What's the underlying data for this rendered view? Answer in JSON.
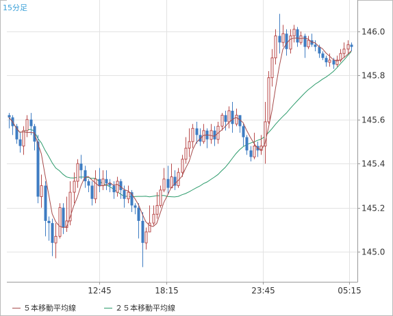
{
  "chart_data": {
    "type": "candlestick",
    "interval_label": "15分足",
    "y_range": [
      144.9,
      146.15
    ],
    "y_ticks": [
      "145.0",
      "145.2",
      "145.4",
      "145.6",
      "145.8",
      "146.0"
    ],
    "x_ticks": [
      "12:45",
      "18:15",
      "23:45",
      "05:15"
    ],
    "colors": {
      "up": "#b84a4a",
      "down": "#3e7cc2",
      "ma5": "#a64a4a",
      "ma25": "#2a9a6a",
      "grid": "#e2e2e2",
      "axis": "#999999"
    },
    "legend": [
      {
        "label": "５本移動平均線",
        "color": "#a64a4a"
      },
      {
        "label": "２５本移動平均線",
        "color": "#2a9a6a"
      }
    ],
    "candles": [
      [
        145.62,
        145.61,
        145.56,
        145.63
      ],
      [
        145.61,
        145.57,
        145.53,
        145.62
      ],
      [
        145.57,
        145.51,
        145.49,
        145.58
      ],
      [
        145.51,
        145.48,
        145.45,
        145.54
      ],
      [
        145.48,
        145.55,
        145.44,
        145.57
      ],
      [
        145.55,
        145.6,
        145.52,
        145.62
      ],
      [
        145.6,
        145.57,
        145.53,
        145.63
      ],
      [
        145.57,
        145.5,
        145.46,
        145.58
      ],
      [
        145.5,
        145.25,
        145.22,
        145.53
      ],
      [
        145.25,
        145.3,
        145.2,
        145.35
      ],
      [
        145.3,
        145.14,
        145.07,
        145.32
      ],
      [
        145.14,
        145.13,
        145.05,
        145.16
      ],
      [
        145.13,
        145.04,
        144.98,
        145.15
      ],
      [
        145.04,
        145.07,
        144.97,
        145.13
      ],
      [
        145.07,
        145.2,
        145.06,
        145.22
      ],
      [
        145.2,
        145.11,
        145.08,
        145.22
      ],
      [
        145.11,
        145.14,
        145.09,
        145.25
      ],
      [
        145.14,
        145.27,
        145.12,
        145.32
      ],
      [
        145.27,
        145.32,
        145.22,
        145.36
      ],
      [
        145.32,
        145.4,
        145.29,
        145.42
      ],
      [
        145.4,
        145.37,
        145.33,
        145.44
      ],
      [
        145.37,
        145.32,
        145.29,
        145.39
      ],
      [
        145.32,
        145.3,
        145.27,
        145.33
      ],
      [
        145.3,
        145.24,
        145.21,
        145.32
      ],
      [
        145.24,
        145.33,
        145.22,
        145.37
      ],
      [
        145.33,
        145.3,
        145.27,
        145.38
      ],
      [
        145.3,
        145.33,
        145.28,
        145.37
      ],
      [
        145.33,
        145.31,
        145.28,
        145.37
      ],
      [
        145.31,
        145.3,
        145.27,
        145.33
      ],
      [
        145.3,
        145.27,
        145.24,
        145.32
      ],
      [
        145.27,
        145.32,
        145.25,
        145.34
      ],
      [
        145.32,
        145.28,
        145.24,
        145.33
      ],
      [
        145.28,
        145.24,
        145.2,
        145.3
      ],
      [
        145.24,
        145.27,
        145.22,
        145.3
      ],
      [
        145.27,
        145.21,
        145.18,
        145.28
      ],
      [
        145.21,
        145.2,
        145.17,
        145.22
      ],
      [
        145.2,
        145.14,
        145.06,
        145.22
      ],
      [
        145.14,
        145.04,
        144.93,
        145.18
      ],
      [
        145.04,
        145.09,
        145.01,
        145.11
      ],
      [
        145.09,
        145.13,
        145.09,
        145.21
      ],
      [
        145.13,
        145.17,
        145.12,
        145.21
      ],
      [
        145.17,
        145.21,
        145.15,
        145.27
      ],
      [
        145.21,
        145.28,
        145.2,
        145.3
      ],
      [
        145.28,
        145.33,
        145.27,
        145.38
      ],
      [
        145.33,
        145.29,
        145.26,
        145.39
      ],
      [
        145.29,
        145.34,
        145.29,
        145.4
      ],
      [
        145.34,
        145.3,
        145.28,
        145.37
      ],
      [
        145.3,
        145.36,
        145.29,
        145.38
      ],
      [
        145.36,
        145.42,
        145.34,
        145.44
      ],
      [
        145.42,
        145.47,
        145.4,
        145.52
      ],
      [
        145.47,
        145.5,
        145.43,
        145.56
      ],
      [
        145.5,
        145.56,
        145.47,
        145.58
      ],
      [
        145.56,
        145.53,
        145.49,
        145.59
      ],
      [
        145.53,
        145.5,
        145.48,
        145.56
      ],
      [
        145.5,
        145.55,
        145.49,
        145.58
      ],
      [
        145.55,
        145.51,
        145.47,
        145.56
      ],
      [
        145.51,
        145.55,
        145.49,
        145.58
      ],
      [
        145.55,
        145.51,
        145.48,
        145.57
      ],
      [
        145.51,
        145.57,
        145.49,
        145.59
      ],
      [
        145.57,
        145.62,
        145.55,
        145.63
      ],
      [
        145.62,
        145.59,
        145.55,
        145.64
      ],
      [
        145.59,
        145.64,
        145.56,
        145.66
      ],
      [
        145.64,
        145.58,
        145.54,
        145.68
      ],
      [
        145.58,
        145.62,
        145.57,
        145.65
      ],
      [
        145.62,
        145.57,
        145.54,
        145.62
      ],
      [
        145.57,
        145.52,
        145.48,
        145.58
      ],
      [
        145.52,
        145.46,
        145.44,
        145.53
      ],
      [
        145.46,
        145.43,
        145.41,
        145.48
      ],
      [
        145.43,
        145.48,
        145.42,
        145.54
      ],
      [
        145.48,
        145.46,
        145.43,
        145.5
      ],
      [
        145.46,
        145.48,
        145.44,
        145.53
      ],
      [
        145.48,
        145.59,
        145.4,
        145.68
      ],
      [
        145.59,
        145.79,
        145.58,
        145.82
      ],
      [
        145.79,
        145.88,
        145.75,
        145.92
      ],
      [
        145.88,
        145.98,
        145.85,
        146.01
      ],
      [
        145.98,
        145.95,
        145.9,
        146.08
      ],
      [
        145.95,
        145.99,
        145.93,
        146.03
      ],
      [
        145.99,
        145.92,
        145.89,
        146.01
      ],
      [
        145.92,
        145.98,
        145.9,
        146.01
      ],
      [
        145.98,
        146.01,
        145.95,
        146.03
      ],
      [
        146.01,
        145.95,
        145.93,
        146.02
      ],
      [
        145.95,
        145.98,
        145.94,
        146.0
      ],
      [
        145.98,
        145.93,
        145.88,
        145.99
      ],
      [
        145.93,
        145.96,
        145.92,
        145.98
      ],
      [
        145.96,
        145.94,
        145.93,
        145.99
      ],
      [
        145.94,
        145.93,
        145.91,
        145.96
      ],
      [
        145.93,
        145.9,
        145.88,
        145.94
      ],
      [
        145.9,
        145.88,
        145.87,
        145.91
      ],
      [
        145.88,
        145.86,
        145.84,
        145.89
      ],
      [
        145.86,
        145.87,
        145.84,
        145.9
      ],
      [
        145.87,
        145.85,
        145.83,
        145.88
      ],
      [
        145.85,
        145.87,
        145.84,
        145.89
      ],
      [
        145.87,
        145.9,
        145.86,
        145.92
      ],
      [
        145.9,
        145.92,
        145.88,
        145.95
      ],
      [
        145.92,
        145.94,
        145.9,
        145.96
      ],
      [
        145.94,
        145.93,
        145.91,
        145.95
      ]
    ]
  }
}
